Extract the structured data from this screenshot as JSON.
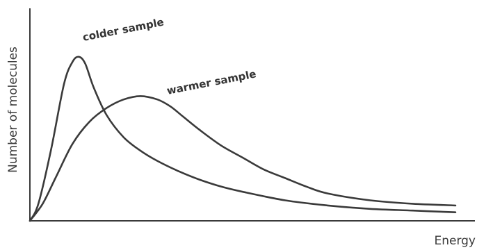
{
  "chart_data": {
    "type": "line",
    "title": "",
    "xlabel": "Energy",
    "ylabel": "Number of molecules",
    "xlim": [
      0,
      1
    ],
    "ylim": [
      0,
      1
    ],
    "grid": false,
    "legend": "none",
    "ticks": false,
    "series": [
      {
        "name": "colder sample",
        "x": [
          0.0,
          0.02,
          0.05,
          0.08,
          0.1,
          0.115,
          0.13,
          0.15,
          0.18,
          0.22,
          0.26,
          0.3,
          0.35,
          0.4,
          0.45,
          0.5,
          0.6,
          0.7,
          0.8,
          0.9,
          1.0
        ],
        "values": [
          0.0,
          0.1,
          0.42,
          0.8,
          0.93,
          0.96,
          0.92,
          0.78,
          0.62,
          0.49,
          0.41,
          0.35,
          0.29,
          0.24,
          0.2,
          0.17,
          0.12,
          0.09,
          0.07,
          0.06,
          0.05
        ]
      },
      {
        "name": "warmer sample",
        "x": [
          0.0,
          0.03,
          0.06,
          0.1,
          0.14,
          0.18,
          0.22,
          0.26,
          0.3,
          0.33,
          0.36,
          0.4,
          0.45,
          0.5,
          0.55,
          0.6,
          0.65,
          0.7,
          0.8,
          0.9,
          1.0
        ],
        "values": [
          0.0,
          0.1,
          0.25,
          0.45,
          0.58,
          0.66,
          0.71,
          0.73,
          0.71,
          0.67,
          0.61,
          0.53,
          0.44,
          0.37,
          0.3,
          0.25,
          0.2,
          0.16,
          0.12,
          0.1,
          0.09
        ]
      }
    ]
  }
}
